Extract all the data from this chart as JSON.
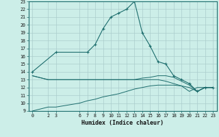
{
  "bg_color": "#cceee8",
  "grid_color": "#aacccc",
  "line_color": "#1a6b6b",
  "xlabel": "Humidex (Indice chaleur)",
  "ylim": [
    9,
    23
  ],
  "xlim": [
    -0.5,
    23.5
  ],
  "yticks": [
    9,
    10,
    11,
    12,
    13,
    14,
    15,
    16,
    17,
    18,
    19,
    20,
    21,
    22,
    23
  ],
  "xticks": [
    0,
    2,
    3,
    6,
    7,
    8,
    9,
    10,
    11,
    12,
    13,
    14,
    15,
    16,
    17,
    18,
    19,
    20,
    21,
    22,
    23
  ],
  "line1_x": [
    0,
    3,
    7,
    8,
    9,
    10,
    11,
    12,
    13,
    14,
    15,
    16,
    17,
    18,
    19,
    20,
    21,
    22,
    23
  ],
  "line1_y": [
    14.0,
    16.5,
    16.5,
    17.5,
    19.5,
    21.0,
    21.5,
    22.0,
    23.0,
    19.0,
    17.3,
    15.3,
    15.0,
    13.5,
    13.0,
    12.5,
    11.5,
    12.0,
    12.0
  ],
  "line2_x": [
    0,
    2,
    6,
    7,
    8,
    9,
    10,
    11,
    12,
    13,
    14,
    15,
    16,
    17,
    18,
    19,
    20,
    21,
    22,
    23
  ],
  "line2_y": [
    13.5,
    13.0,
    13.0,
    13.0,
    13.0,
    13.0,
    13.0,
    13.0,
    13.0,
    13.0,
    13.2,
    13.3,
    13.5,
    13.5,
    13.3,
    12.8,
    12.3,
    11.5,
    12.0,
    12.0
  ],
  "line3_x": [
    0,
    2,
    6,
    7,
    8,
    9,
    10,
    11,
    12,
    13,
    14,
    15,
    16,
    17,
    18,
    19,
    20,
    21,
    22,
    23
  ],
  "line3_y": [
    13.5,
    13.0,
    13.0,
    13.0,
    13.0,
    13.0,
    13.0,
    13.0,
    13.0,
    13.0,
    13.0,
    13.0,
    13.0,
    12.8,
    12.5,
    12.2,
    12.0,
    11.5,
    12.0,
    12.0
  ],
  "line4_x": [
    0,
    2,
    3,
    6,
    7,
    8,
    9,
    10,
    11,
    12,
    13,
    14,
    15,
    16,
    17,
    18,
    19,
    20,
    21,
    22,
    23
  ],
  "line4_y": [
    9.0,
    9.5,
    9.5,
    10.0,
    10.3,
    10.5,
    10.8,
    11.0,
    11.2,
    11.5,
    11.8,
    12.0,
    12.2,
    12.3,
    12.3,
    12.3,
    12.2,
    11.5,
    12.0,
    12.0,
    12.0
  ]
}
